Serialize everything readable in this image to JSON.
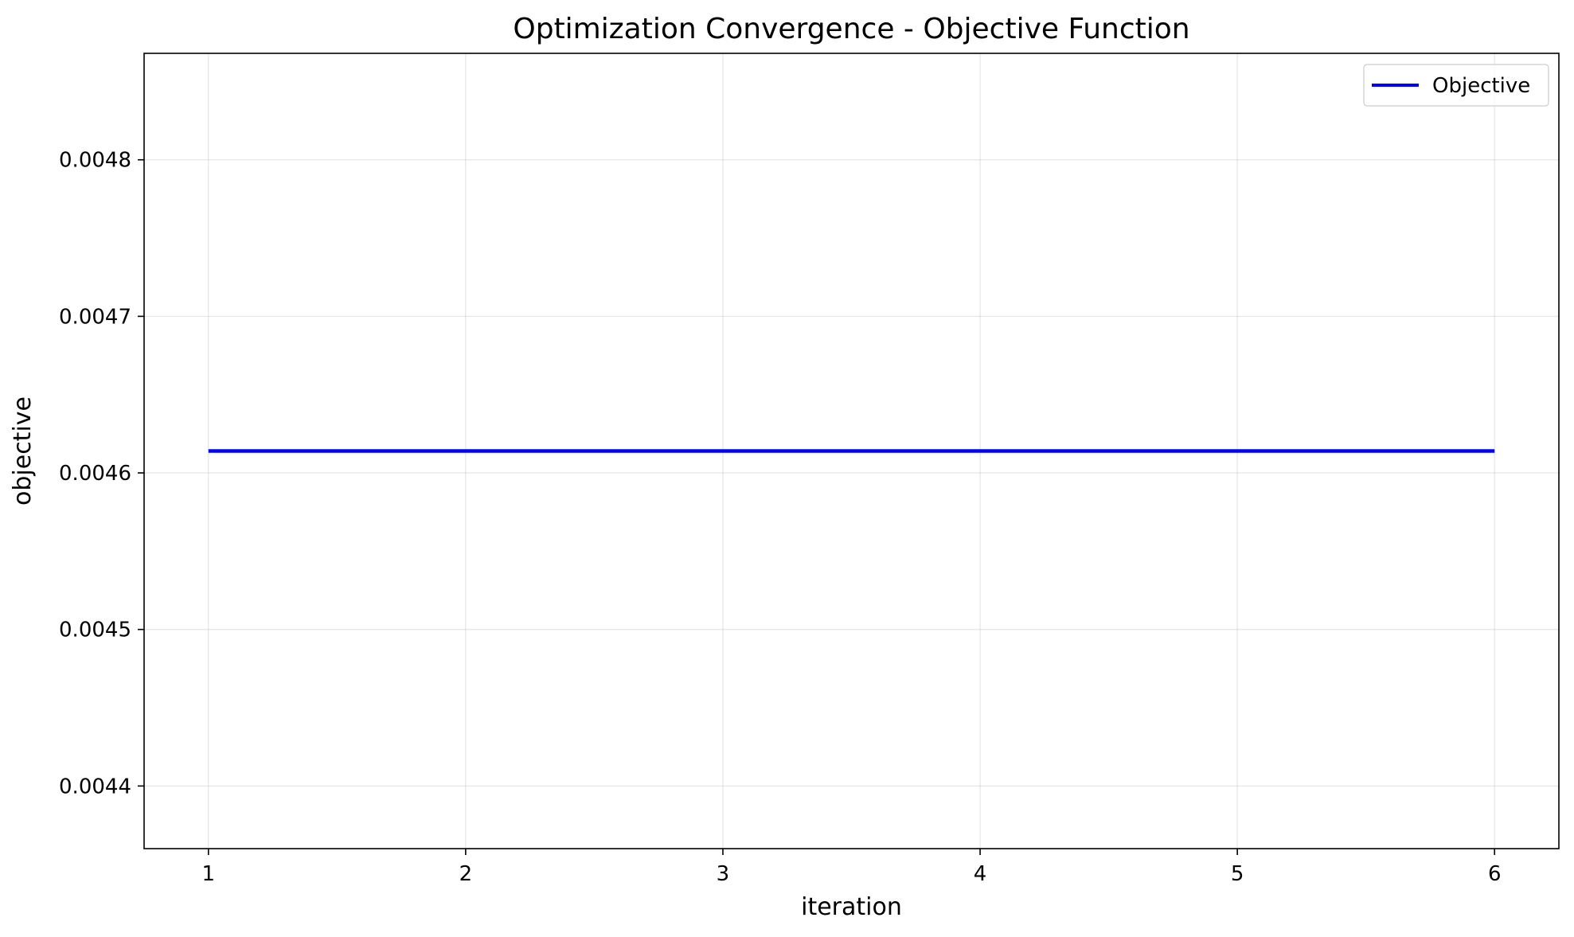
{
  "chart_data": {
    "type": "line",
    "title": "Optimization Convergence - Objective Function",
    "xlabel": "iteration",
    "ylabel": "objective",
    "xlim": [
      0.75,
      6.25
    ],
    "ylim": [
      0.00436,
      0.004868
    ],
    "xticks": [
      1,
      2,
      3,
      4,
      5,
      6
    ],
    "yticks": [
      0.0044,
      0.0045,
      0.0046,
      0.0047,
      0.0048
    ],
    "ytick_labels": [
      "0.0044",
      "0.0045",
      "0.0046",
      "0.0047",
      "0.0048"
    ],
    "grid": true,
    "legend": {
      "position": "top-right"
    },
    "series": [
      {
        "name": "Objective",
        "color": "#0000ff",
        "x": [
          1,
          2,
          3,
          4,
          5,
          6
        ],
        "y": [
          0.004614,
          0.004614,
          0.004614,
          0.004614,
          0.004614,
          0.004614
        ]
      }
    ]
  }
}
